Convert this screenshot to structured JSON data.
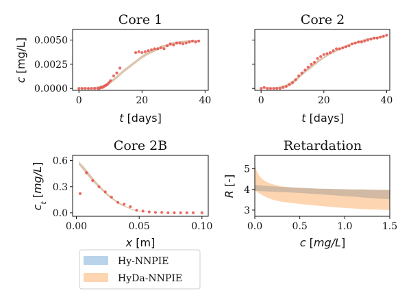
{
  "legend": {
    "items": [
      {
        "label": "Hy-NNPIE",
        "color": "#b9d4ea"
      },
      {
        "label": "HyDa-NNPIE",
        "color": "#fdd5b0"
      }
    ]
  },
  "chart_data": [
    {
      "id": "core1",
      "type": "scatter",
      "title": "Core 1",
      "ylabel_var": "c",
      "ylabel_unit": "[mg/L]",
      "xlabel_var": "t",
      "xlabel_unit": "[days]",
      "xlim": [
        -2,
        41
      ],
      "ylim": [
        -0.0002,
        0.0061
      ],
      "xticks": [
        {
          "v": 0,
          "t": "0"
        },
        {
          "v": 20,
          "t": "20"
        },
        {
          "v": 40,
          "t": "40"
        }
      ],
      "yticks": [
        {
          "v": 0.0,
          "t": "0.0000"
        },
        {
          "v": 0.0025,
          "t": "0.0025"
        },
        {
          "v": 0.005,
          "t": "0.0050"
        }
      ],
      "show_ytick_labels": true,
      "band_color": "#d7ba9e",
      "band": {
        "x": [
          0,
          4,
          6,
          8,
          10,
          12,
          14,
          16,
          18,
          20,
          22,
          24,
          26,
          28,
          30,
          32,
          34,
          36,
          38
        ],
        "lower": [
          0.0,
          0.0,
          0.0,
          0.0001,
          0.0005,
          0.001,
          0.0016,
          0.0021,
          0.0026,
          0.0031,
          0.0035,
          0.0038,
          0.0041,
          0.0043,
          0.0045,
          0.0046,
          0.00475,
          0.0048,
          0.0049
        ],
        "upper": [
          0.0001,
          0.0001,
          0.0002,
          0.0004,
          0.0008,
          0.0013,
          0.0019,
          0.0024,
          0.0029,
          0.0034,
          0.0038,
          0.0041,
          0.0044,
          0.0046,
          0.0048,
          0.0049,
          0.00495,
          0.005,
          0.005
        ]
      },
      "points_color": "#e8504a",
      "points": {
        "x": [
          0,
          1,
          2,
          3,
          4,
          5,
          6,
          6.5,
          7,
          7.5,
          8,
          8.5,
          9,
          9.5,
          10,
          11,
          12,
          13,
          18,
          19,
          20,
          21,
          22,
          23,
          24,
          25,
          26,
          27,
          28,
          29,
          30,
          31,
          32,
          33,
          34,
          35,
          36,
          37,
          38
        ],
        "y": [
          0.0,
          0.0,
          0.0,
          0.0,
          0.0,
          0.0,
          0.0,
          0.0,
          0.0001,
          0.0001,
          0.0002,
          0.0003,
          0.0004,
          0.0006,
          0.0008,
          0.0013,
          0.0016,
          0.0021,
          0.0037,
          0.0038,
          0.0037,
          0.0038,
          0.0039,
          0.004,
          0.0041,
          0.0041,
          0.0042,
          0.0041,
          0.0044,
          0.0046,
          0.0045,
          0.0047,
          0.0047,
          0.0046,
          0.0047,
          0.0048,
          0.0049,
          0.0048,
          0.0049
        ]
      }
    },
    {
      "id": "core2",
      "type": "scatter",
      "title": "Core 2",
      "xlabel_var": "t",
      "xlabel_unit": "[days]",
      "xlim": [
        -2,
        41
      ],
      "ylim": [
        -0.0002,
        0.0061
      ],
      "xticks": [
        {
          "v": 0,
          "t": "0"
        },
        {
          "v": 20,
          "t": "20"
        },
        {
          "v": 40,
          "t": "40"
        }
      ],
      "yticks": [
        {
          "v": 0.0,
          "t": ""
        },
        {
          "v": 0.0025,
          "t": ""
        },
        {
          "v": 0.005,
          "t": ""
        }
      ],
      "show_ytick_labels": false,
      "band_color": "#d7ba9e",
      "band": {
        "x": [
          0,
          4,
          6,
          8,
          10,
          12,
          14,
          16,
          18,
          20,
          22,
          24,
          26,
          28,
          30,
          32,
          34,
          36,
          38,
          40
        ],
        "lower": [
          0.0,
          0.0,
          0.0,
          0.0001,
          0.0004,
          0.001,
          0.0016,
          0.0021,
          0.0026,
          0.0031,
          0.0035,
          0.0038,
          0.0041,
          0.0044,
          0.0046,
          0.0048,
          0.005,
          0.0051,
          0.0052,
          0.0054
        ],
        "upper": [
          0.0001,
          0.0001,
          0.0002,
          0.0004,
          0.0008,
          0.0013,
          0.0019,
          0.0024,
          0.0029,
          0.0033,
          0.0037,
          0.004,
          0.0043,
          0.0046,
          0.0048,
          0.005,
          0.0052,
          0.0053,
          0.0054,
          0.0055
        ]
      },
      "points_color": "#e8504a",
      "points": {
        "x": [
          0,
          1,
          2,
          3,
          4,
          5,
          6,
          7,
          8,
          9,
          10,
          11,
          12,
          13,
          14,
          15,
          16,
          17,
          18,
          19,
          20,
          21,
          22,
          23,
          24,
          25,
          26,
          27,
          28,
          29,
          30,
          31,
          32,
          33,
          34,
          35,
          36,
          37,
          38,
          39,
          40
        ],
        "y": [
          0.0,
          0.0001,
          0.0,
          0.0,
          0.0,
          0.0,
          0.0,
          0.0001,
          0.0002,
          0.0004,
          0.0006,
          0.0009,
          0.0013,
          0.0016,
          0.0019,
          0.0022,
          0.0025,
          0.0027,
          0.0031,
          0.0033,
          0.0035,
          0.0036,
          0.0037,
          0.0039,
          0.0041,
          0.0041,
          0.0042,
          0.0043,
          0.0044,
          0.0046,
          0.0047,
          0.0048,
          0.0048,
          0.0049,
          0.005,
          0.0051,
          0.0052,
          0.0052,
          0.0053,
          0.0054,
          0.0055
        ]
      }
    },
    {
      "id": "core2b",
      "type": "scatter",
      "title": "Core 2B",
      "ylabel_var": "c_t",
      "ylabel_unit": "[mg/L]",
      "xlabel_var": "x",
      "xlabel_unit": "[m]",
      "xlim": [
        -0.003,
        0.105
      ],
      "ylim": [
        -0.04,
        0.66
      ],
      "xticks": [
        {
          "v": 0.0,
          "t": "0.00"
        },
        {
          "v": 0.05,
          "t": "0.05"
        },
        {
          "v": 0.1,
          "t": "0.10"
        }
      ],
      "yticks": [
        {
          "v": 0.0,
          "t": "0.0"
        },
        {
          "v": 0.3,
          "t": "0.3"
        },
        {
          "v": 0.6,
          "t": "0.6"
        }
      ],
      "show_ytick_labels": true,
      "band_color": "#d7ba9e",
      "band": {
        "x": [
          0.002,
          0.006,
          0.01,
          0.015,
          0.02,
          0.025,
          0.03,
          0.035,
          0.04,
          0.045,
          0.05,
          0.055
        ],
        "lower": [
          0.55,
          0.48,
          0.41,
          0.33,
          0.26,
          0.19,
          0.14,
          0.09,
          0.06,
          0.03,
          0.015,
          0.005
        ],
        "upper": [
          0.59,
          0.53,
          0.46,
          0.37,
          0.29,
          0.22,
          0.16,
          0.11,
          0.07,
          0.04,
          0.02,
          0.01
        ]
      },
      "points_color": "#e8504a",
      "points": {
        "x": [
          0.003,
          0.008,
          0.013,
          0.018,
          0.023,
          0.028,
          0.033,
          0.038,
          0.043,
          0.048,
          0.053,
          0.058,
          0.063,
          0.068,
          0.073,
          0.078,
          0.083,
          0.088,
          0.093,
          0.1
        ],
        "y": [
          0.22,
          0.46,
          0.37,
          0.3,
          0.24,
          0.18,
          0.12,
          0.1,
          0.07,
          0.03,
          0.02,
          0.01,
          0.005,
          0.005,
          0.0,
          0.0,
          0.0,
          0.0,
          0.0,
          0.0
        ]
      }
    },
    {
      "id": "retardation",
      "type": "area",
      "title": "Retardation",
      "ylabel_var": "R",
      "ylabel_unit": "[-]",
      "xlabel_var": "c",
      "xlabel_unit": "[mg/L]",
      "xlim": [
        0.0,
        1.5
      ],
      "ylim": [
        2.7,
        5.65
      ],
      "xticks": [
        {
          "v": 0.0,
          "t": "0.0"
        },
        {
          "v": 0.5,
          "t": "0.5"
        },
        {
          "v": 1.0,
          "t": "1.0"
        },
        {
          "v": 1.5,
          "t": "1.5"
        }
      ],
      "yticks": [
        {
          "v": 3,
          "t": "3"
        },
        {
          "v": 4,
          "t": "4"
        },
        {
          "v": 5,
          "t": "5"
        }
      ],
      "show_ytick_labels": true,
      "bands": [
        {
          "name": "HyDa-NNPIE",
          "color": "#fdd5b0",
          "x": [
            0.0,
            0.02,
            0.05,
            0.1,
            0.15,
            0.2,
            0.3,
            0.4,
            0.5,
            0.6,
            0.8,
            1.0,
            1.2,
            1.5
          ],
          "lower": [
            3.95,
            3.9,
            3.8,
            3.68,
            3.58,
            3.5,
            3.4,
            3.35,
            3.3,
            3.25,
            3.17,
            3.1,
            3.05,
            3.0
          ],
          "upper": [
            5.25,
            4.9,
            4.65,
            4.45,
            4.32,
            4.25,
            4.15,
            4.1,
            4.05,
            4.02,
            4.0,
            3.98,
            3.97,
            3.95
          ]
        },
        {
          "name": "overlap",
          "color": "#d1b9a4",
          "x": [
            0.0,
            0.1,
            0.2,
            0.3,
            0.4,
            0.5,
            0.6,
            0.7,
            0.8,
            0.9,
            1.0,
            1.1,
            1.2,
            1.3,
            1.4,
            1.5
          ],
          "lower": [
            3.93,
            3.91,
            3.89,
            3.87,
            3.85,
            3.83,
            3.8,
            3.77,
            3.74,
            3.71,
            3.68,
            3.65,
            3.61,
            3.58,
            3.55,
            3.52
          ],
          "upper": [
            4.22,
            4.18,
            4.15,
            4.12,
            4.1,
            4.08,
            4.06,
            4.04,
            4.03,
            4.02,
            4.01,
            4.0,
            4.0,
            3.99,
            3.98,
            3.98
          ]
        }
      ]
    }
  ]
}
